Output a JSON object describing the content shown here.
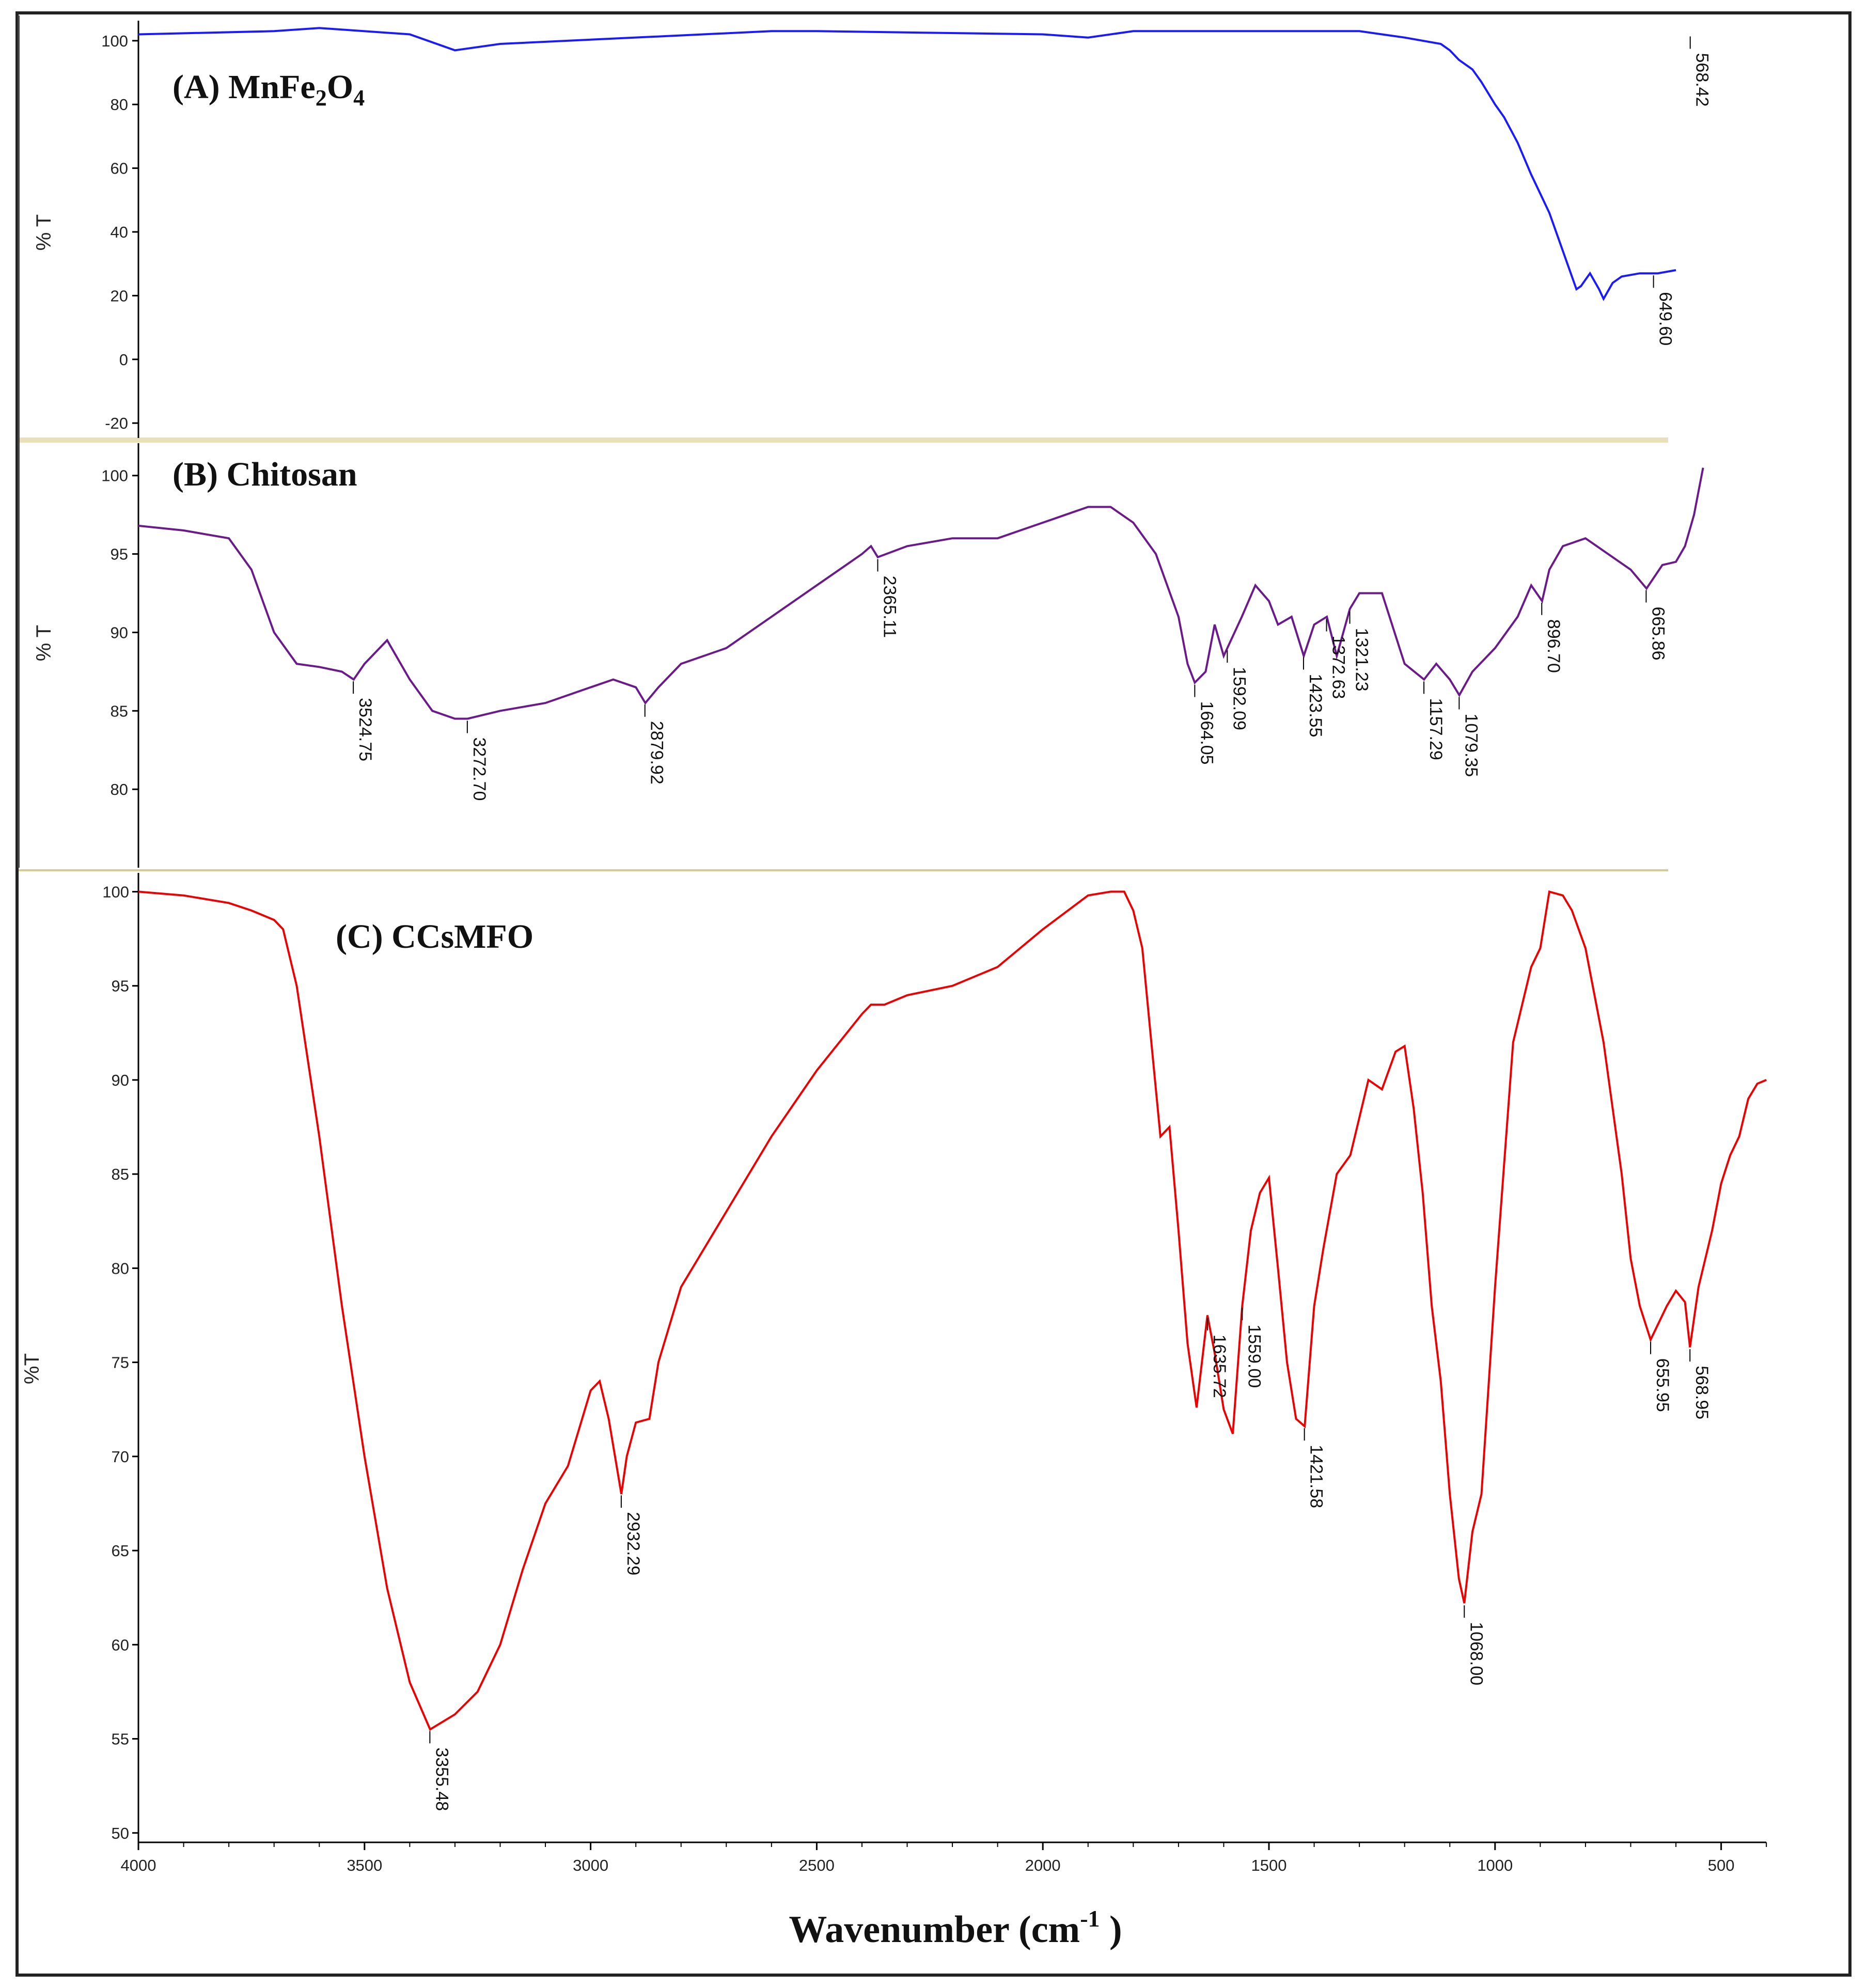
{
  "figure": {
    "xlabel": "Wavenumber (cm",
    "xlabel_sup": "-1",
    "xlabel_close": " )",
    "x_ticks": [
      "4000",
      "3500",
      "3000",
      "2500",
      "2000",
      "1500",
      "1000",
      "500"
    ]
  },
  "chart_data": [
    {
      "type": "line",
      "title": "(A) MnFe2O4",
      "ylabel": "% T",
      "color": "#1a1aff",
      "xlim": [
        4000,
        600
      ],
      "ylim": [
        -25,
        105
      ],
      "y_ticks": [
        "100",
        "80",
        "60",
        "40",
        "20",
        "0",
        "-20"
      ],
      "x": [
        4000,
        3700,
        3600,
        3400,
        3300,
        3200,
        2600,
        2500,
        2000,
        1900,
        1800,
        1300,
        1250,
        1200,
        1120,
        1100,
        1080,
        1050,
        1030,
        1000,
        980,
        950,
        920,
        900,
        880,
        860,
        840,
        820,
        810,
        800,
        790,
        770,
        760,
        740,
        720,
        680,
        640,
        600
      ],
      "y": [
        102,
        103,
        104,
        102,
        97,
        99,
        103,
        103,
        102,
        101,
        103,
        103,
        102,
        101,
        99,
        97,
        94,
        91,
        87,
        80,
        76,
        68,
        58,
        52,
        46,
        38,
        30,
        22,
        23,
        25,
        27,
        22,
        19,
        24,
        26,
        27,
        27,
        28
      ],
      "peak_labels": [
        "649.60",
        "568.42"
      ],
      "peak_x": [
        649.6,
        568.42
      ]
    },
    {
      "type": "line",
      "title": "(B) Chitosan",
      "ylabel": "% T",
      "color": "#6a1a8a",
      "xlim": [
        4000,
        600
      ],
      "ylim": [
        75,
        102
      ],
      "y_ticks": [
        "100",
        "95",
        "90",
        "85",
        "80"
      ],
      "x": [
        4000,
        3900,
        3800,
        3750,
        3700,
        3650,
        3600,
        3550,
        3524,
        3500,
        3450,
        3400,
        3350,
        3300,
        3272,
        3200,
        3100,
        3000,
        2950,
        2900,
        2879,
        2850,
        2800,
        2700,
        2600,
        2500,
        2400,
        2380,
        2365,
        2300,
        2200,
        2100,
        2050,
        2000,
        1950,
        1900,
        1850,
        1800,
        1750,
        1700,
        1680,
        1664,
        1640,
        1620,
        1600,
        1592,
        1560,
        1530,
        1500,
        1480,
        1450,
        1423,
        1400,
        1372,
        1350,
        1321,
        1300,
        1250,
        1200,
        1157,
        1130,
        1100,
        1079,
        1050,
        1000,
        950,
        920,
        896,
        880,
        850,
        800,
        750,
        700,
        665,
        630,
        600,
        580,
        560,
        550,
        540
      ],
      "y": [
        96.8,
        96.5,
        96,
        94,
        90,
        88,
        87.8,
        87.5,
        87,
        88,
        89.5,
        87,
        85,
        84.5,
        84.5,
        85,
        85.5,
        86.5,
        87,
        86.5,
        85.5,
        86.5,
        88,
        89,
        91,
        93,
        95,
        95.5,
        94.8,
        95.5,
        96,
        96,
        96.5,
        97,
        97.5,
        98,
        98,
        97,
        95,
        91,
        88,
        86.8,
        87.5,
        90.5,
        88.5,
        89,
        91,
        93,
        92,
        90.5,
        91,
        88.5,
        90.5,
        91,
        88.5,
        91.5,
        92.5,
        92.5,
        88,
        87,
        88,
        87,
        86,
        87.5,
        89,
        91,
        93,
        92,
        94,
        95.5,
        96,
        95,
        94,
        92.8,
        94.3,
        94.5,
        95.5,
        97.5,
        99,
        100.5
      ],
      "peak_labels": [
        "3524.75",
        "3272.70",
        "2879.92",
        "2365.11",
        "1664.05",
        "1592.09",
        "1423.55",
        "1372.63",
        "1321.23",
        "1157.29",
        "1079.35",
        "896.70",
        "665.86"
      ],
      "peak_x": [
        3524.75,
        3272.7,
        2879.92,
        2365.11,
        1664.05,
        1592.09,
        1423.55,
        1372.63,
        1321.23,
        1157.29,
        1079.35,
        896.7,
        665.86
      ]
    },
    {
      "type": "line",
      "title": "(C) CCsMFO",
      "ylabel": "%T",
      "color": "#ee0000",
      "xlim": [
        4000,
        400
      ],
      "ylim": [
        49.5,
        101
      ],
      "y_ticks": [
        "100",
        "95",
        "90",
        "85",
        "80",
        "75",
        "70",
        "65",
        "60",
        "55",
        "50"
      ],
      "x": [
        4000,
        3900,
        3800,
        3750,
        3700,
        3680,
        3650,
        3600,
        3550,
        3500,
        3450,
        3400,
        3355,
        3300,
        3250,
        3200,
        3150,
        3100,
        3050,
        3000,
        2980,
        2960,
        2932,
        2920,
        2900,
        2870,
        2850,
        2800,
        2750,
        2700,
        2600,
        2500,
        2400,
        2380,
        2350,
        2300,
        2200,
        2100,
        2000,
        1900,
        1850,
        1820,
        1800,
        1780,
        1760,
        1740,
        1720,
        1700,
        1680,
        1660,
        1636,
        1620,
        1600,
        1580,
        1559,
        1540,
        1520,
        1500,
        1480,
        1460,
        1440,
        1421,
        1400,
        1380,
        1350,
        1320,
        1300,
        1280,
        1250,
        1220,
        1200,
        1180,
        1160,
        1140,
        1120,
        1100,
        1080,
        1068,
        1050,
        1030,
        1000,
        960,
        920,
        900,
        880,
        850,
        830,
        800,
        760,
        720,
        700,
        680,
        656,
        640,
        620,
        600,
        580,
        569,
        550,
        520,
        500,
        480,
        460,
        440,
        420,
        400
      ],
      "y": [
        100,
        99.8,
        99.4,
        99,
        98.5,
        98,
        95,
        87,
        78,
        70,
        63,
        58,
        55.5,
        56.3,
        57.5,
        60,
        64,
        67.5,
        69.5,
        73.5,
        74,
        72,
        68,
        70,
        71.8,
        72,
        75,
        79,
        81,
        83,
        87,
        90.5,
        93.5,
        94,
        94,
        94.5,
        95,
        96,
        98,
        99.8,
        100,
        100,
        99,
        97,
        92,
        87,
        87.5,
        82,
        76,
        72.6,
        77.5,
        75.5,
        72.5,
        71.2,
        78,
        82,
        84,
        84.8,
        80,
        75,
        72,
        71.6,
        78,
        81,
        85,
        86,
        88,
        90,
        89.5,
        91.5,
        91.8,
        88.5,
        84,
        78,
        74,
        68,
        63.5,
        62.2,
        66,
        68,
        79,
        92,
        96,
        97,
        100,
        99.8,
        99,
        97,
        92,
        85,
        80.5,
        78,
        76.2,
        77,
        78,
        78.8,
        78.2,
        75.8,
        79,
        82,
        84.5,
        86,
        87,
        89,
        89.8,
        90
      ],
      "peak_labels": [
        "3355.48",
        "2932.29",
        "1635.72",
        "1559.00",
        "1421.58",
        "1068.00",
        "655.95",
        "568.95"
      ],
      "peak_x": [
        3355.48,
        2932.29,
        1635.72,
        1559.0,
        1421.58,
        1068.0,
        655.95,
        568.95
      ]
    }
  ]
}
